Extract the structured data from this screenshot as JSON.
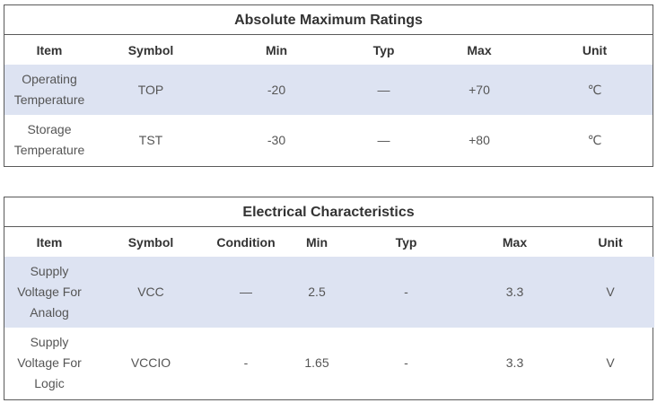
{
  "absolute_max": {
    "title": "Absolute Maximum Ratings",
    "headers": [
      "Item",
      "Symbol",
      "Min",
      "Typ",
      "Max",
      "Unit"
    ],
    "rows": [
      {
        "item_line1": "Operating",
        "item_line2": "Temperature",
        "symbol": "TOP",
        "min": "-20",
        "typ": "—",
        "max": "+70",
        "unit": "℃"
      },
      {
        "item_line1": "Storage",
        "item_line2": "Temperature",
        "symbol": "TST",
        "min": "-30",
        "typ": "—",
        "max": "+80",
        "unit": "℃"
      }
    ]
  },
  "electrical": {
    "title": "Electrical Characteristics",
    "headers": [
      "Item",
      "Symbol",
      "Condition",
      "Min",
      "Typ",
      "Max",
      "Unit"
    ],
    "rows": [
      {
        "item_line1": "Supply",
        "item_line2": "Voltage For",
        "item_line3": "Analog",
        "symbol": "VCC",
        "condition": "—",
        "min": "2.5",
        "typ": "-",
        "max": "3.3",
        "unit": "V"
      },
      {
        "item_line1": "Supply",
        "item_line2": "Voltage For",
        "item_line3": "Logic",
        "symbol": "VCCIO",
        "condition": "-",
        "min": "1.65",
        "typ": "-",
        "max": "3.3",
        "unit": "V"
      }
    ]
  }
}
